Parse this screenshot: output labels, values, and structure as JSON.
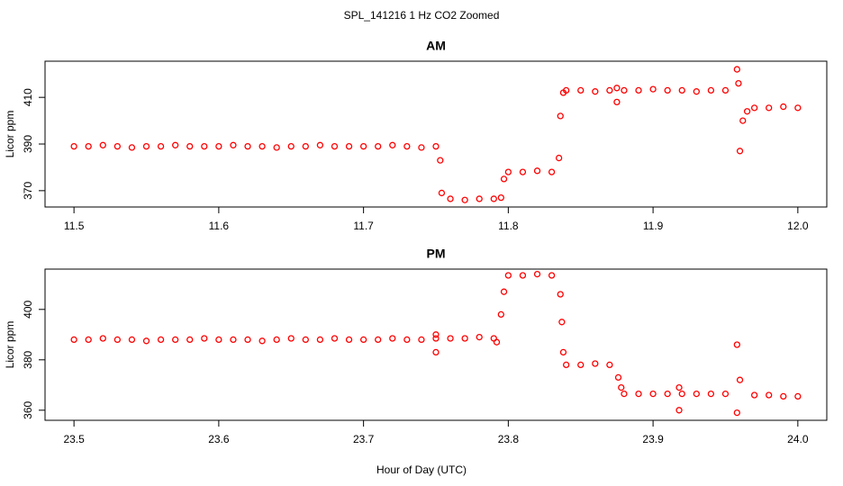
{
  "title": "SPL_141216  1 Hz CO2 Zoomed",
  "xlabel": "Hour of Day (UTC)",
  "chart_data": [
    {
      "type": "scatter",
      "title": "AM",
      "ylabel": "Licor ppm",
      "color": "#ff0000",
      "xlim": [
        11.48,
        12.02
      ],
      "ylim": [
        363,
        425.5
      ],
      "xticks": [
        11.5,
        11.6,
        11.7,
        11.8,
        11.9,
        {
          "value": 12,
          "label": "12.0"
        }
      ],
      "yticks": [
        370,
        390,
        410
      ],
      "x": [
        11.5,
        11.51,
        11.52,
        11.53,
        11.54,
        11.55,
        11.56,
        11.57,
        11.58,
        11.59,
        11.6,
        11.61,
        11.62,
        11.63,
        11.64,
        11.65,
        11.66,
        11.67,
        11.68,
        11.69,
        11.7,
        11.71,
        11.72,
        11.73,
        11.74,
        11.75,
        11.753,
        11.754,
        11.76,
        11.77,
        11.78,
        11.79,
        11.795,
        11.797,
        11.8,
        11.81,
        11.82,
        11.83,
        11.835,
        11.836,
        11.838,
        11.84,
        11.85,
        11.86,
        11.87,
        11.875,
        11.875,
        11.88,
        11.89,
        11.9,
        11.91,
        11.92,
        11.93,
        11.94,
        11.95,
        11.958,
        11.959,
        11.96,
        11.962,
        11.965,
        11.97,
        11.98,
        11.99,
        12.0
      ],
      "values": [
        389,
        389,
        389.5,
        389,
        388.5,
        389,
        389,
        389.5,
        389,
        389,
        389,
        389.5,
        389,
        389,
        388.5,
        389,
        389,
        389.5,
        389,
        389,
        389,
        389,
        389.5,
        389,
        388.5,
        389,
        383,
        369,
        366.5,
        366,
        366.5,
        366.5,
        367,
        375,
        378,
        378,
        378.5,
        378,
        384,
        402,
        412,
        413,
        413,
        412.5,
        413,
        408,
        414,
        413,
        413,
        413.5,
        413,
        413,
        412.5,
        413,
        413,
        422,
        416,
        387,
        400,
        404,
        405.5,
        405.5,
        406,
        405.5
      ]
    },
    {
      "type": "scatter",
      "title": "PM",
      "ylabel": "Licor ppm",
      "color": "#ff0000",
      "xlim": [
        23.48,
        24.02
      ],
      "ylim": [
        356,
        416
      ],
      "xticks": [
        23.5,
        23.6,
        23.7,
        23.8,
        23.9,
        {
          "value": 24,
          "label": "24.0"
        }
      ],
      "yticks": [
        360,
        380,
        400
      ],
      "x": [
        23.5,
        23.51,
        23.52,
        23.53,
        23.54,
        23.55,
        23.56,
        23.57,
        23.58,
        23.59,
        23.6,
        23.61,
        23.62,
        23.63,
        23.64,
        23.65,
        23.66,
        23.67,
        23.68,
        23.69,
        23.7,
        23.71,
        23.72,
        23.73,
        23.74,
        23.75,
        23.75,
        23.75,
        23.76,
        23.77,
        23.78,
        23.79,
        23.792,
        23.795,
        23.797,
        23.8,
        23.81,
        23.82,
        23.83,
        23.836,
        23.837,
        23.838,
        23.84,
        23.85,
        23.86,
        23.87,
        23.876,
        23.878,
        23.88,
        23.89,
        23.9,
        23.91,
        23.918,
        23.918,
        23.92,
        23.93,
        23.94,
        23.95,
        23.958,
        23.958,
        23.96,
        23.97,
        23.98,
        23.99,
        24.0
      ],
      "values": [
        388,
        388,
        388.5,
        388,
        388,
        387.5,
        388,
        388,
        388,
        388.5,
        388,
        388,
        388,
        387.5,
        388,
        388.5,
        388,
        388,
        388.5,
        388,
        388,
        388,
        388.5,
        388,
        388,
        388.5,
        383,
        390,
        388.5,
        388.5,
        389,
        388.5,
        387,
        398,
        407,
        413.5,
        413.5,
        414,
        413.5,
        406,
        395,
        383,
        378,
        378,
        378.5,
        378,
        373,
        369,
        366.5,
        366.5,
        366.5,
        366.5,
        360,
        369,
        366.5,
        366.5,
        366.5,
        366.5,
        359,
        386,
        372,
        366,
        366,
        365.5,
        365.5
      ]
    }
  ]
}
